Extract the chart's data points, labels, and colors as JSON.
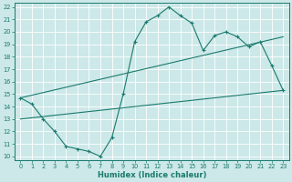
{
  "title": "",
  "xlabel": "Humidex (Indice chaleur)",
  "bg_color": "#cce8e8",
  "line_color": "#1a7a6e",
  "grid_color": "#ffffff",
  "xlim": [
    -0.5,
    23.5
  ],
  "ylim": [
    9.7,
    22.3
  ],
  "xticks": [
    0,
    1,
    2,
    3,
    4,
    5,
    6,
    7,
    8,
    9,
    10,
    11,
    12,
    13,
    14,
    15,
    16,
    17,
    18,
    19,
    20,
    21,
    22,
    23
  ],
  "yticks": [
    10,
    11,
    12,
    13,
    14,
    15,
    16,
    17,
    18,
    19,
    20,
    21,
    22
  ],
  "line1_x": [
    0,
    1,
    2,
    3,
    4,
    5,
    6,
    7,
    8,
    9,
    10,
    11,
    12,
    13,
    14,
    15,
    16,
    17,
    18,
    19,
    20,
    21,
    22,
    23
  ],
  "line1_y": [
    14.7,
    14.2,
    13.0,
    12.0,
    10.8,
    10.6,
    10.4,
    10.0,
    11.5,
    15.0,
    19.2,
    20.8,
    21.3,
    22.0,
    21.3,
    20.7,
    18.5,
    19.7,
    20.0,
    19.6,
    18.8,
    19.2,
    17.3,
    15.3
  ],
  "line2_x": [
    0,
    23
  ],
  "line2_y": [
    14.7,
    19.6
  ],
  "line3_x": [
    0,
    23
  ],
  "line3_y": [
    13.0,
    15.3
  ],
  "xlabel_fontsize": 6.0,
  "tick_fontsize": 4.8
}
